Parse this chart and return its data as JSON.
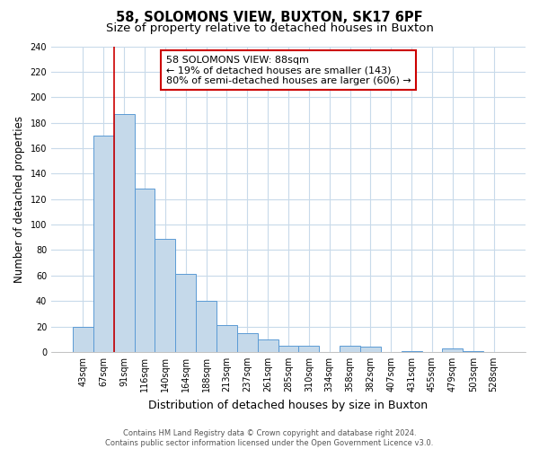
{
  "title": "58, SOLOMONS VIEW, BUXTON, SK17 6PF",
  "subtitle": "Size of property relative to detached houses in Buxton",
  "xlabel": "Distribution of detached houses by size in Buxton",
  "ylabel": "Number of detached properties",
  "footer_line1": "Contains HM Land Registry data © Crown copyright and database right 2024.",
  "footer_line2": "Contains public sector information licensed under the Open Government Licence v3.0.",
  "bin_labels": [
    "43sqm",
    "67sqm",
    "91sqm",
    "116sqm",
    "140sqm",
    "164sqm",
    "188sqm",
    "213sqm",
    "237sqm",
    "261sqm",
    "285sqm",
    "310sqm",
    "334sqm",
    "358sqm",
    "382sqm",
    "407sqm",
    "431sqm",
    "455sqm",
    "479sqm",
    "503sqm",
    "528sqm"
  ],
  "bar_values": [
    20,
    170,
    187,
    128,
    89,
    61,
    40,
    21,
    15,
    10,
    5,
    5,
    0,
    5,
    4,
    0,
    1,
    0,
    3,
    1,
    0
  ],
  "bar_color": "#c5d9ea",
  "bar_edge_color": "#5b9bd5",
  "vline_index": 2,
  "vline_color": "#cc0000",
  "annotation_line1": "58 SOLOMONS VIEW: 88sqm",
  "annotation_line2": "← 19% of detached houses are smaller (143)",
  "annotation_line3": "80% of semi-detached houses are larger (606) →",
  "annotation_box_facecolor": "white",
  "annotation_box_edgecolor": "#cc0000",
  "ylim": [
    0,
    240
  ],
  "yticks": [
    0,
    20,
    40,
    60,
    80,
    100,
    120,
    140,
    160,
    180,
    200,
    220,
    240
  ],
  "background_color": "white",
  "grid_color": "#c8daea",
  "title_fontsize": 10.5,
  "subtitle_fontsize": 9.5,
  "axis_label_fontsize": 8.5,
  "tick_fontsize": 7,
  "annotation_fontsize": 8,
  "footer_fontsize": 6
}
